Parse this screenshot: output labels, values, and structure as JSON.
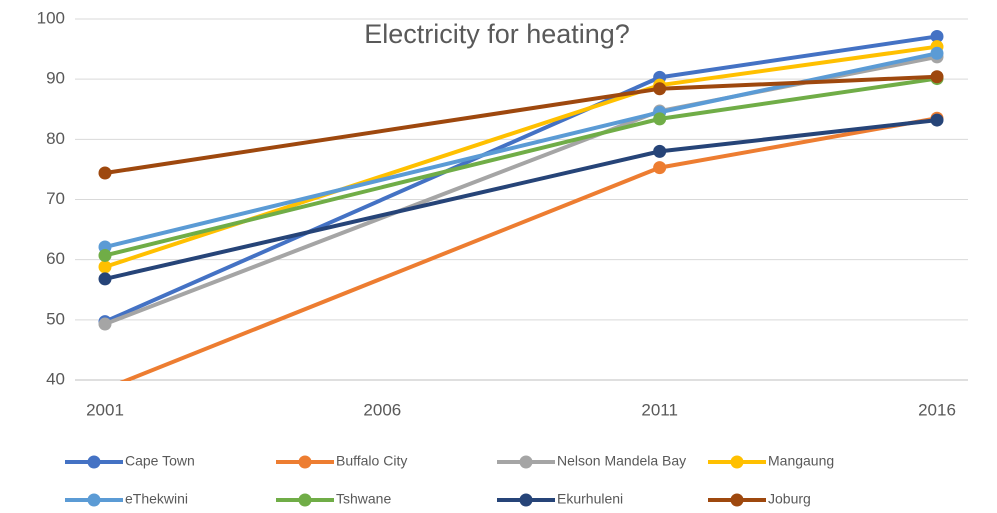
{
  "chart_data": {
    "type": "line",
    "title": "Electricity for heating?",
    "x": [
      2001,
      2011,
      2016
    ],
    "xlim": [
      2001,
      2016
    ],
    "xticks": [
      2001,
      2006,
      2011,
      2016
    ],
    "ylim": [
      40,
      100
    ],
    "yticks": [
      40,
      50,
      60,
      70,
      80,
      90,
      100
    ],
    "grid": true,
    "legend": "bottom",
    "series": [
      {
        "name": "Cape Town",
        "color": "#4472c4",
        "values": [
          49.7,
          90.3,
          97.1
        ]
      },
      {
        "name": "Buffalo City",
        "color": "#ed7d31",
        "values": [
          38.5,
          75.3,
          83.5
        ]
      },
      {
        "name": "Nelson Mandela Bay",
        "color": "#a5a5a5",
        "values": [
          49.3,
          84.7,
          93.7
        ]
      },
      {
        "name": "Mangaung",
        "color": "#ffc000",
        "values": [
          58.8,
          89.0,
          95.4
        ]
      },
      {
        "name": "eThekwini",
        "color": "#5b9bd5",
        "values": [
          62.1,
          84.5,
          94.3
        ]
      },
      {
        "name": "Tshwane",
        "color": "#70ad47",
        "values": [
          60.7,
          83.4,
          90.1
        ]
      },
      {
        "name": "Ekurhuleni",
        "color": "#264478",
        "values": [
          56.8,
          78.0,
          83.2
        ]
      },
      {
        "name": "Joburg",
        "color": "#9e480e",
        "values": [
          74.4,
          88.4,
          90.4
        ]
      }
    ]
  }
}
